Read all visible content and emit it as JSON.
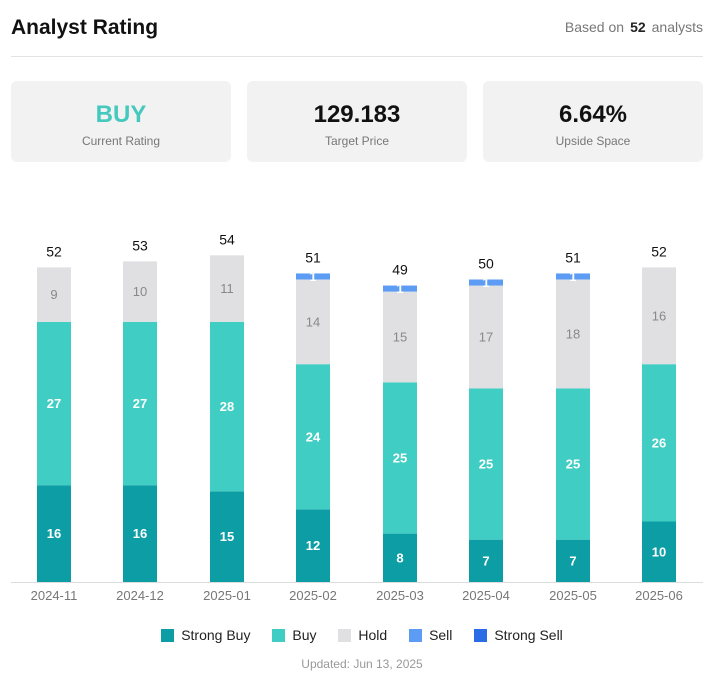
{
  "header": {
    "title": "Analyst Rating",
    "based_prefix": "Based on",
    "analyst_count": "52",
    "based_suffix": "analysts"
  },
  "cards": [
    {
      "value": "BUY",
      "label": "Current Rating"
    },
    {
      "value": "129.183",
      "label": "Target Price"
    },
    {
      "value": "6.64%",
      "label": "Upside Space"
    }
  ],
  "colors": {
    "strong_buy": "#0d9ea5",
    "buy": "#40cdc3",
    "hold": "#e0e0e3",
    "sell": "#5c9cf5",
    "strong_sell": "#2a6be6",
    "rating_accent": "#45c9be"
  },
  "chart_data": {
    "type": "bar",
    "stacked": true,
    "categories": [
      "2024-11",
      "2024-12",
      "2025-01",
      "2025-02",
      "2025-03",
      "2025-04",
      "2025-05",
      "2025-06"
    ],
    "totals": [
      52,
      53,
      54,
      51,
      49,
      50,
      51,
      52
    ],
    "series": [
      {
        "name": "Strong Buy",
        "key": "strong_buy",
        "values": [
          16,
          16,
          15,
          12,
          8,
          7,
          7,
          10
        ]
      },
      {
        "name": "Buy",
        "key": "buy",
        "values": [
          27,
          27,
          28,
          24,
          25,
          25,
          25,
          26
        ]
      },
      {
        "name": "Hold",
        "key": "hold",
        "values": [
          9,
          10,
          11,
          14,
          15,
          17,
          18,
          16
        ]
      },
      {
        "name": "Sell",
        "key": "sell",
        "values": [
          0,
          0,
          0,
          1,
          1,
          1,
          1,
          0
        ]
      },
      {
        "name": "Strong Sell",
        "key": "strong_sell",
        "values": [
          0,
          0,
          0,
          0,
          0,
          0,
          0,
          0
        ]
      }
    ],
    "ylim": [
      0,
      60
    ],
    "legend_position": "bottom"
  },
  "legend": [
    "Strong Buy",
    "Buy",
    "Hold",
    "Sell",
    "Strong Sell"
  ],
  "footer": {
    "updated": "Updated: Jun 13, 2025"
  }
}
